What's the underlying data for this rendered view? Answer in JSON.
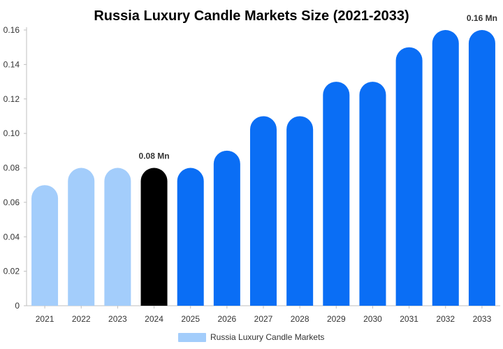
{
  "chart_data": {
    "type": "bar",
    "title": "Russia Luxury Candle Markets Size (2021-2033)",
    "categories": [
      "2021",
      "2022",
      "2023",
      "2024",
      "2025",
      "2026",
      "2027",
      "2028",
      "2029",
      "2030",
      "2031",
      "2032",
      "2033"
    ],
    "series": [
      {
        "name": "Russia Luxury Candle Markets",
        "values": [
          0.07,
          0.08,
          0.08,
          0.08,
          0.08,
          0.09,
          0.11,
          0.11,
          0.13,
          0.13,
          0.15,
          0.16,
          0.16
        ]
      }
    ],
    "bar_colors": [
      "#a3cdfb",
      "#a3cdfb",
      "#a3cdfb",
      "#000000",
      "#0a6ef5",
      "#0a6ef5",
      "#0a6ef5",
      "#0a6ef5",
      "#0a6ef5",
      "#0a6ef5",
      "#0a6ef5",
      "#0a6ef5",
      "#0a6ef5"
    ],
    "data_labels": [
      {
        "category": "2024",
        "text": "0.08 Mn"
      },
      {
        "category": "2033",
        "text": "0.16 Mn"
      }
    ],
    "y_ticks": [
      "0",
      "0.02",
      "0.04",
      "0.06",
      "0.08",
      "0.10",
      "0.12",
      "0.14",
      "0.16"
    ],
    "ylim": [
      0,
      0.16
    ],
    "grid": false,
    "legend": {
      "placement": "bottom",
      "label": "Russia Luxury Candle Markets",
      "color": "#a3cdfb"
    },
    "xlabel": "",
    "ylabel": ""
  }
}
